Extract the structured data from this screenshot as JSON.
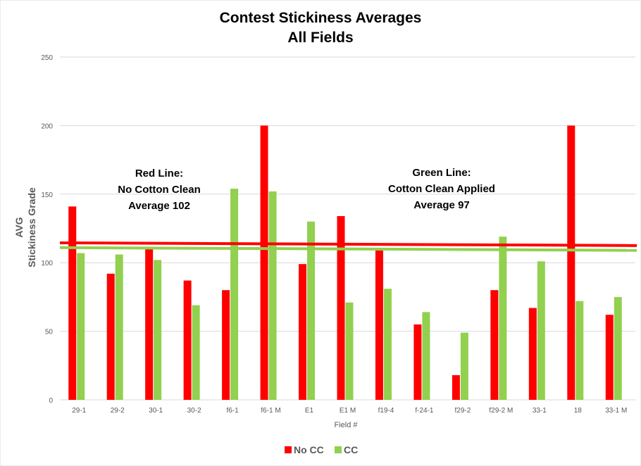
{
  "chart_data": {
    "type": "bar",
    "title": "Contest Stickiness Averages",
    "subtitle": "All Fields",
    "xlabel": "Field #",
    "ylabel": [
      "AVG",
      "Stickiness Grade"
    ],
    "ylim": [
      0,
      250
    ],
    "yticks": [
      0,
      50,
      100,
      150,
      200,
      250
    ],
    "grid": true,
    "legend_position": "bottom",
    "categories": [
      "29-1",
      "29-2",
      "30-1",
      "30-2",
      "f6-1",
      "f6-1 M",
      "E1",
      "E1 M",
      "f19-4",
      "f-24-1",
      "f29-2",
      "f29-2 M",
      "33-1",
      "18",
      "33-1 M"
    ],
    "series": [
      {
        "name": "No CC",
        "color": "#ff0000",
        "values": [
          141,
          92,
          110,
          87,
          80,
          200,
          99,
          134,
          109,
          55,
          18,
          80,
          67,
          200,
          62
        ]
      },
      {
        "name": "CC",
        "color": "#92d050",
        "values": [
          107,
          106,
          102,
          69,
          154,
          152,
          130,
          71,
          81,
          64,
          49,
          119,
          101,
          72,
          75
        ]
      }
    ],
    "reference_lines": [
      {
        "series": "No CC",
        "color": "#ff0000",
        "start_value": 114.5,
        "end_value": 112.5,
        "label": [
          "Red Line:",
          "No Cotton Clean",
          "Average 102"
        ]
      },
      {
        "series": "CC",
        "color": "#92d050",
        "start_value": 111,
        "end_value": 109,
        "label": [
          "Green Line:",
          "Cotton Clean Applied",
          "Average 97"
        ]
      }
    ],
    "gridline_color": "#d9d9d9"
  }
}
